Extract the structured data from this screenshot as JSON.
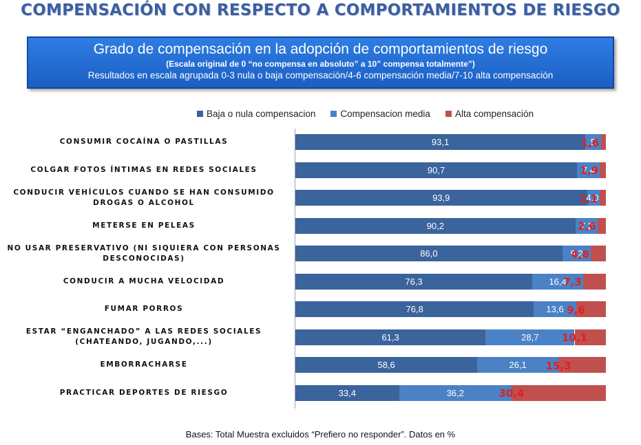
{
  "main_title": "COMPENSACIÓN CON RESPECTO A COMPORTAMIENTOS DE RIESGO",
  "header": {
    "title": "Grado de compensación en la adopción de comportamientos de riesgo",
    "scale_note": "(Escala original de 0 “no compensa en absoluto” a 10” compensa totalmente”)",
    "results_note": "Resultados en escala agrupada 0-3 nula o baja compensación/4-6 compensación media/7-10 alta compensación"
  },
  "colors": {
    "low": "#3b639c",
    "medium": "#4b82c6",
    "high": "#c0504d",
    "high_text": "#e02020"
  },
  "chart_data": {
    "type": "bar",
    "orientation": "horizontal",
    "stacked": true,
    "xlim": [
      0,
      100
    ],
    "legend_position": "top",
    "categories": [
      "CONSUMIR COCAÍNA O PASTILLAS",
      "COLGAR FOTOS ÍNTIMAS EN REDES SOCIALES",
      "CONDUCIR VEHÍCULOS CUANDO SE HAN CONSUMIDO DROGAS O ALCOHOL",
      "METERSE EN PELEAS",
      "NO USAR PRESERVATIVO (NI SIQUIERA CON PERSONAS DESCONOCIDAS)",
      "CONDUCIR A MUCHA VELOCIDAD",
      "FUMAR PORROS",
      "ESTAR “ENGANCHADO” A LAS REDES SOCIALES (CHATEANDO, JUGANDO,...)",
      "EMBORRACHARSE",
      "PRACTICAR DEPORTES DE RIESGO"
    ],
    "series": [
      {
        "name": "Baja o nula compensacion",
        "values": [
          93.1,
          90.7,
          93.9,
          90.2,
          86.0,
          76.3,
          76.8,
          61.3,
          58.6,
          33.4
        ],
        "labels": [
          "93,1",
          "90,7",
          "93,9",
          "90,2",
          "86,0",
          "76,3",
          "76,8",
          "61,3",
          "58,6",
          "33,4"
        ]
      },
      {
        "name": "Compensacion media",
        "values": [
          5,
          7.4,
          4.0,
          7.2,
          9.2,
          16.4,
          13.6,
          28.7,
          26.1,
          36.2
        ],
        "labels": [
          "5",
          "7,4",
          "4,0",
          "7,2",
          "9,2",
          "16,4",
          "13,6",
          "28,7",
          "26,1",
          "36,2"
        ]
      },
      {
        "name": "Alta compensación",
        "values": [
          1.6,
          1.9,
          2.1,
          2.6,
          4.8,
          7.3,
          9.6,
          10.1,
          15.3,
          30.4
        ],
        "labels": [
          "1,6",
          "1,9",
          "2,1",
          "2,6",
          "4,8",
          "7,3",
          "9,6",
          "10,1",
          "15,3",
          "30,4"
        ]
      }
    ]
  },
  "footnote": "Bases: Total Muestra excluidos “Prefiero no responder”. Datos en %"
}
